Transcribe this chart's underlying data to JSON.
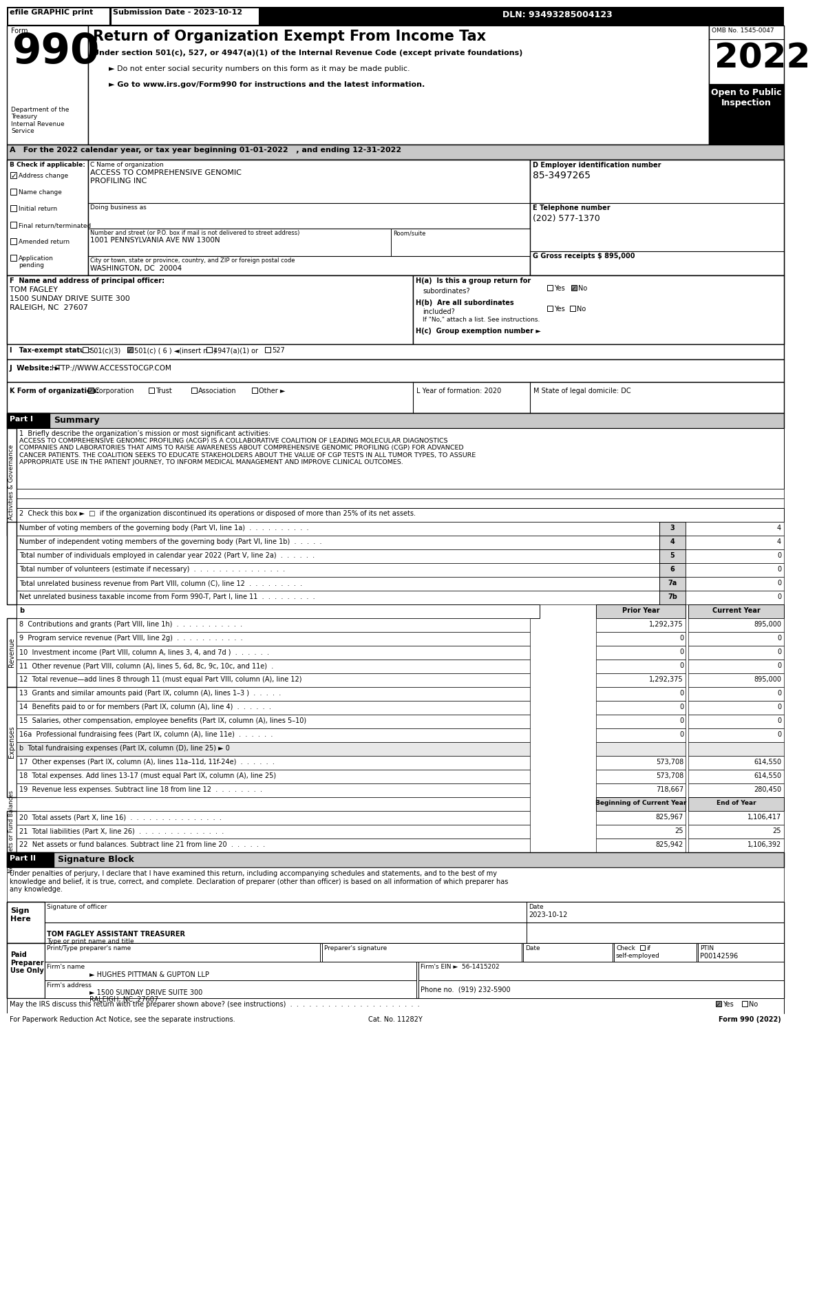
{
  "header_bar_text": "efile GRAPHIC print",
  "submission_date": "Submission Date - 2023-10-12",
  "dln": "DLN: 93493285004123",
  "title": "Return of Organization Exempt From Income Tax",
  "subtitle1": "Under section 501(c), 527, or 4947(a)(1) of the Internal Revenue Code (except private foundations)",
  "subtitle2": "► Do not enter social security numbers on this form as it may be made public.",
  "subtitle3": "► Go to www.irs.gov/Form990 for instructions and the latest information.",
  "omb": "OMB No. 1545-0047",
  "year": "2022",
  "open_label": "Open to Public\nInspection",
  "dept_label": "Department of the\nTreasury\nInternal Revenue\nService",
  "section_a": "A For the 2022 calendar year, or tax year beginning 01-01-2022   , and ending 12-31-2022",
  "b_check_label": "B Check if applicable:",
  "b_items": [
    "Address change",
    "Name change",
    "Initial return",
    "Final return/terminated",
    "Amended return",
    "Application\npending"
  ],
  "b_checked": [
    true,
    false,
    false,
    false,
    false,
    false
  ],
  "c_label": "C Name of organization",
  "c_org_name": "ACCESS TO COMPREHENSIVE GENOMIC\nPROFILING INC",
  "c_dba_label": "Doing business as",
  "c_address_label": "Number and street (or P.O. box if mail is not delivered to street address)",
  "c_address": "1001 PENNSYLVANIA AVE NW 1300N",
  "c_room_label": "Room/suite",
  "c_city_label": "City or town, state or province, country, and ZIP or foreign postal code",
  "c_city": "WASHINGTON, DC  20004",
  "d_label": "D Employer identification number",
  "d_ein": "85-3497265",
  "e_label": "E Telephone number",
  "e_phone": "(202) 577-1370",
  "g_label": "G Gross receipts $ 895,000",
  "f_label": "F  Name and address of principal officer:",
  "f_name": "TOM FAGLEY",
  "f_address1": "1500 SUNDAY DRIVE SUITE 300",
  "f_address2": "RALEIGH, NC  27607",
  "ha_label": "H(a)  Is this a group return for",
  "ha_sub": "subordinates?",
  "hb_label": "H(b)  Are all subordinates",
  "hb_sub": "included?",
  "hb_note": "If \"No,\" attach a list. See instructions.",
  "hc_label": "H(c)  Group exemption number ►",
  "i_label": "I   Tax-exempt status:",
  "i_501c3": "501(c)(3)",
  "i_501c6": "501(c) ( 6 ) ◄(insert no.)",
  "i_4947": "4947(a)(1) or",
  "i_527": "527",
  "j_label": "J  Website: ►",
  "j_website": "HTTP://WWW.ACCESSTOCGP.COM",
  "k_label": "K Form of organization:",
  "k_corp": "Corporation",
  "k_trust": "Trust",
  "k_assoc": "Association",
  "k_other": "Other ►",
  "l_label": "L Year of formation: 2020",
  "m_label": "M State of legal domicile: DC",
  "part1_label": "Part I",
  "part1_title": "Summary",
  "line1_label": "1  Briefly describe the organization’s mission or most significant activities:",
  "line1_text": "ACCESS TO COMPREHENSIVE GENOMIC PROFILING (ACGP) IS A COLLABORATIVE COALITION OF LEADING MOLECULAR DIAGNOSTICS\nCOMPANIES AND LABORATORIES THAT AIMS TO RAISE AWARENESS ABOUT COMPREHENSIVE GENOMIC PROFILING (CGP) FOR ADVANCED\nCANCER PATIENTS. THE COALITION SEEKS TO EDUCATE STAKEHOLDERS ABOUT THE VALUE OF CGP TESTS IN ALL TUMOR TYPES, TO ASSURE\nAPPROPRIATE USE IN THE PATIENT JOURNEY, TO INFORM MEDICAL MANAGEMENT AND IMPROVE CLINICAL OUTCOMES.",
  "line2_text": "2  Check this box ►  □  if the organization discontinued its operations or disposed of more than 25% of its net assets.",
  "side_label_activities": "Activities & Governance",
  "lines_345": [
    {
      "num": "3",
      "text": "Number of voting members of the governing body (Part VI, line 1a)  .  .  .  .  .  .  .  .  .  .",
      "value": "4"
    },
    {
      "num": "4",
      "text": "Number of independent voting members of the governing body (Part VI, line 1b)  .  .  .  .  .",
      "value": "4"
    },
    {
      "num": "5",
      "text": "Total number of individuals employed in calendar year 2022 (Part V, line 2a)  .  .  .  .  .  .",
      "value": "0"
    },
    {
      "num": "6",
      "text": "Total number of volunteers (estimate if necessary)  .  .  .  .  .  .  .  .  .  .  .  .  .  .  .",
      "value": "0"
    },
    {
      "num": "7a",
      "text": "Total unrelated business revenue from Part VIII, column (C), line 12  .  .  .  .  .  .  .  .  .",
      "value": "0"
    },
    {
      "num": "7b",
      "text": "Net unrelated business taxable income from Form 990-T, Part I, line 11  .  .  .  .  .  .  .  .  .",
      "value": "0"
    }
  ],
  "col_headers": [
    "Prior Year",
    "Current Year"
  ],
  "revenue_label": "Revenue",
  "revenue_lines": [
    {
      "num": "8",
      "text": "Contributions and grants (Part VIII, line 1h)  .  .  .  .  .  .  .  .  .  .  .",
      "prior": "1,292,375",
      "current": "895,000"
    },
    {
      "num": "9",
      "text": "Program service revenue (Part VIII, line 2g)  .  .  .  .  .  .  .  .  .  .  .",
      "prior": "0",
      "current": "0"
    },
    {
      "num": "10",
      "text": "Investment income (Part VIII, column A, lines 3, 4, and 7d )  .  .  .  .  .  .",
      "prior": "0",
      "current": "0"
    },
    {
      "num": "11",
      "text": "Other revenue (Part VIII, column (A), lines 5, 6d, 8c, 9c, 10c, and 11e)  .",
      "prior": "0",
      "current": "0"
    },
    {
      "num": "12",
      "text": "Total revenue—add lines 8 through 11 (must equal Part VIII, column (A), line 12)",
      "prior": "1,292,375",
      "current": "895,000"
    }
  ],
  "expenses_label": "Expenses",
  "expense_lines": [
    {
      "num": "13",
      "text": "Grants and similar amounts paid (Part IX, column (A), lines 1–3 )  .  .  .  .  .",
      "prior": "0",
      "current": "0",
      "shade_right": false
    },
    {
      "num": "14",
      "text": "Benefits paid to or for members (Part IX, column (A), line 4)  .  .  .  .  .  .",
      "prior": "0",
      "current": "0",
      "shade_right": false
    },
    {
      "num": "15",
      "text": "Salaries, other compensation, employee benefits (Part IX, column (A), lines 5–10)",
      "prior": "0",
      "current": "0",
      "shade_right": false
    },
    {
      "num": "16a",
      "text": "Professional fundraising fees (Part IX, column (A), line 11e)  .  .  .  .  .  .",
      "prior": "0",
      "current": "0",
      "shade_right": false
    },
    {
      "num": "b",
      "text": "Total fundraising expenses (Part IX, column (D), line 25) ► 0",
      "prior": "",
      "current": "",
      "shade_right": true
    },
    {
      "num": "17",
      "text": "Other expenses (Part IX, column (A), lines 11a–11d, 11f-24e)  .  .  .  .  .  .",
      "prior": "573,708",
      "current": "614,550",
      "shade_right": false
    },
    {
      "num": "18",
      "text": "Total expenses. Add lines 13-17 (must equal Part IX, column (A), line 25)",
      "prior": "573,708",
      "current": "614,550",
      "shade_right": false
    },
    {
      "num": "19",
      "text": "Revenue less expenses. Subtract line 18 from line 12  .  .  .  .  .  .  .  .",
      "prior": "718,667",
      "current": "280,450",
      "shade_right": false
    }
  ],
  "netassets_label": "Net Assets or Fund Balances",
  "netassets_col_headers": [
    "Beginning of Current Year",
    "End of Year"
  ],
  "netassets_lines": [
    {
      "num": "20",
      "text": "Total assets (Part X, line 16)  .  .  .  .  .  .  .  .  .  .  .  .  .  .  .",
      "begin": "825,967",
      "end": "1,106,417"
    },
    {
      "num": "21",
      "text": "Total liabilities (Part X, line 26)  .  .  .  .  .  .  .  .  .  .  .  .  .  .",
      "begin": "25",
      "end": "25"
    },
    {
      "num": "22",
      "text": "Net assets or fund balances. Subtract line 21 from line 20  .  .  .  .  .  .",
      "begin": "825,942",
      "end": "1,106,392"
    }
  ],
  "part2_label": "Part II",
  "part2_title": "Signature Block",
  "sig_declaration": "Under penalties of perjury, I declare that I have examined this return, including accompanying schedules and statements, and to the best of my\nknowledge and belief, it is true, correct, and complete. Declaration of preparer (other than officer) is based on all information of which preparer has\nany knowledge.",
  "sig_date": "2023-10-12",
  "sig_officer_label": "Signature of officer",
  "sig_date_label": "Date",
  "sig_name": "TOM FAGLEY ASSISTANT TREASURER",
  "sig_title_label": "Type or print name and title",
  "paid_label": "Paid\nPreparer\nUse Only",
  "prep_name_label": "Print/Type preparer's name",
  "prep_sig_label": "Preparer's signature",
  "prep_date_label": "Date",
  "prep_check_label": "Check     if\nself-employed",
  "prep_ptin_label": "PTIN",
  "prep_ptin": "P00142596",
  "firms_name_label": "Firm's name",
  "firms_name": "► HUGHES PITTMAN & GUPTON LLP",
  "firms_ein_label": "Firm's EIN ►",
  "firms_ein": "56-1415202",
  "firms_addr_label": "Firm's address",
  "firms_addr": "► 1500 SUNDAY DRIVE SUITE 300",
  "firms_city": "RALEIGH, NC  27607",
  "firms_phone_label": "Phone no.",
  "firms_phone": "(919) 232-5900",
  "discuss_text": "May the IRS discuss this return with the preparer shown above? (see instructions)  .  .  .  .  .  .  .  .  .  .  .  .  .  .  .  .  .  .  .  .  .",
  "cat_no": "Cat. No. 11282Y",
  "form_footer": "Form 990 (2022)",
  "for_paperwork": "For Paperwork Reduction Act Notice, see the separate instructions."
}
